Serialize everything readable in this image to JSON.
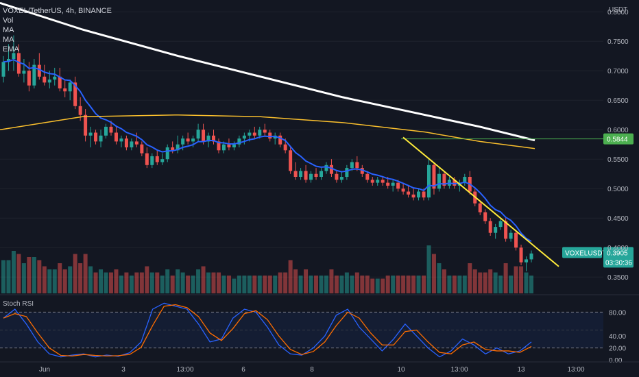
{
  "header": {
    "symbol_line": "VOXEL/TetherUS, 4h, BINANCE",
    "indicators": [
      "Vol",
      "MA",
      "MA",
      "EMA"
    ]
  },
  "price_axis": {
    "unit": "USDT",
    "ticks": [
      "0.8000",
      "0.7500",
      "0.7000",
      "0.6500",
      "0.6000",
      "0.5500",
      "0.5000",
      "0.4500",
      "0.4000",
      "0.3500"
    ]
  },
  "time_axis": {
    "labels": [
      "Jun",
      "3",
      "13:00",
      "6",
      "8",
      "10",
      "13:00",
      "13",
      "13:00"
    ]
  },
  "price_tags": {
    "level": {
      "value": "0.5844",
      "color": "#4caf50"
    },
    "symbol": "VOXELUSDT",
    "last": "0.3905",
    "countdown": "03:30:36",
    "last_color": "#26a69a"
  },
  "stoch_rsi": {
    "label": "Stoch RSI",
    "ticks": [
      "80.00",
      "40.00",
      "20.00",
      "0.00"
    ]
  },
  "colors": {
    "background": "#131722",
    "up": "#26a69a",
    "down": "#ef5350",
    "ema": "#2962ff",
    "ma_long": "#ffffff",
    "ma_mid": "#fbc02d",
    "trendline": "#ffeb3b",
    "stoch_k": "#2962ff",
    "stoch_d": "#ff6d00"
  },
  "chart_data": {
    "type": "candlestick",
    "price_range": [
      0.32,
      0.82
    ],
    "candles": [
      [
        0.69,
        0.725,
        0.68,
        0.715
      ],
      [
        0.715,
        0.745,
        0.7,
        0.72
      ],
      [
        0.72,
        0.76,
        0.7,
        0.73
      ],
      [
        0.73,
        0.745,
        0.69,
        0.695
      ],
      [
        0.695,
        0.72,
        0.68,
        0.7
      ],
      [
        0.7,
        0.715,
        0.665,
        0.675
      ],
      [
        0.675,
        0.72,
        0.67,
        0.71
      ],
      [
        0.71,
        0.73,
        0.685,
        0.69
      ],
      [
        0.69,
        0.71,
        0.675,
        0.68
      ],
      [
        0.68,
        0.7,
        0.67,
        0.685
      ],
      [
        0.685,
        0.705,
        0.675,
        0.69
      ],
      [
        0.69,
        0.705,
        0.665,
        0.67
      ],
      [
        0.67,
        0.685,
        0.655,
        0.665
      ],
      [
        0.665,
        0.685,
        0.65,
        0.68
      ],
      [
        0.68,
        0.69,
        0.635,
        0.64
      ],
      [
        0.64,
        0.655,
        0.615,
        0.625
      ],
      [
        0.625,
        0.635,
        0.58,
        0.59
      ],
      [
        0.59,
        0.605,
        0.57,
        0.595
      ],
      [
        0.595,
        0.6,
        0.575,
        0.58
      ],
      [
        0.58,
        0.6,
        0.57,
        0.59
      ],
      [
        0.59,
        0.61,
        0.585,
        0.605
      ],
      [
        0.605,
        0.615,
        0.59,
        0.595
      ],
      [
        0.595,
        0.605,
        0.575,
        0.58
      ],
      [
        0.58,
        0.59,
        0.57,
        0.585
      ],
      [
        0.585,
        0.59,
        0.565,
        0.57
      ],
      [
        0.57,
        0.585,
        0.565,
        0.58
      ],
      [
        0.58,
        0.595,
        0.57,
        0.575
      ],
      [
        0.575,
        0.58,
        0.555,
        0.56
      ],
      [
        0.56,
        0.57,
        0.535,
        0.54
      ],
      [
        0.54,
        0.56,
        0.535,
        0.555
      ],
      [
        0.555,
        0.565,
        0.54,
        0.545
      ],
      [
        0.545,
        0.56,
        0.54,
        0.55
      ],
      [
        0.55,
        0.575,
        0.545,
        0.57
      ],
      [
        0.57,
        0.58,
        0.56,
        0.565
      ],
      [
        0.565,
        0.59,
        0.56,
        0.575
      ],
      [
        0.575,
        0.59,
        0.565,
        0.585
      ],
      [
        0.585,
        0.595,
        0.575,
        0.58
      ],
      [
        0.58,
        0.59,
        0.57,
        0.585
      ],
      [
        0.585,
        0.61,
        0.58,
        0.6
      ],
      [
        0.6,
        0.61,
        0.575,
        0.58
      ],
      [
        0.58,
        0.595,
        0.57,
        0.59
      ],
      [
        0.59,
        0.6,
        0.575,
        0.58
      ],
      [
        0.58,
        0.585,
        0.56,
        0.565
      ],
      [
        0.565,
        0.58,
        0.56,
        0.575
      ],
      [
        0.575,
        0.585,
        0.565,
        0.57
      ],
      [
        0.57,
        0.58,
        0.565,
        0.575
      ],
      [
        0.575,
        0.59,
        0.57,
        0.585
      ],
      [
        0.585,
        0.595,
        0.575,
        0.59
      ],
      [
        0.59,
        0.6,
        0.58,
        0.595
      ],
      [
        0.595,
        0.605,
        0.585,
        0.59
      ],
      [
        0.59,
        0.605,
        0.585,
        0.6
      ],
      [
        0.6,
        0.61,
        0.59,
        0.595
      ],
      [
        0.595,
        0.6,
        0.58,
        0.585
      ],
      [
        0.585,
        0.595,
        0.575,
        0.59
      ],
      [
        0.59,
        0.595,
        0.57,
        0.575
      ],
      [
        0.575,
        0.585,
        0.56,
        0.565
      ],
      [
        0.565,
        0.57,
        0.525,
        0.53
      ],
      [
        0.53,
        0.545,
        0.515,
        0.52
      ],
      [
        0.52,
        0.535,
        0.515,
        0.53
      ],
      [
        0.53,
        0.54,
        0.51,
        0.515
      ],
      [
        0.515,
        0.53,
        0.51,
        0.525
      ],
      [
        0.525,
        0.535,
        0.515,
        0.52
      ],
      [
        0.52,
        0.535,
        0.515,
        0.53
      ],
      [
        0.53,
        0.545,
        0.525,
        0.54
      ],
      [
        0.54,
        0.55,
        0.52,
        0.525
      ],
      [
        0.525,
        0.53,
        0.51,
        0.515
      ],
      [
        0.515,
        0.53,
        0.51,
        0.52
      ],
      [
        0.52,
        0.54,
        0.515,
        0.535
      ],
      [
        0.535,
        0.55,
        0.53,
        0.545
      ],
      [
        0.545,
        0.555,
        0.53,
        0.535
      ],
      [
        0.535,
        0.54,
        0.52,
        0.525
      ],
      [
        0.525,
        0.53,
        0.51,
        0.515
      ],
      [
        0.515,
        0.52,
        0.505,
        0.51
      ],
      [
        0.51,
        0.52,
        0.505,
        0.515
      ],
      [
        0.515,
        0.52,
        0.505,
        0.51
      ],
      [
        0.51,
        0.52,
        0.5,
        0.505
      ],
      [
        0.505,
        0.515,
        0.495,
        0.51
      ],
      [
        0.51,
        0.515,
        0.495,
        0.5
      ],
      [
        0.5,
        0.51,
        0.49,
        0.495
      ],
      [
        0.495,
        0.505,
        0.485,
        0.49
      ],
      [
        0.49,
        0.5,
        0.48,
        0.485
      ],
      [
        0.485,
        0.5,
        0.48,
        0.495
      ],
      [
        0.495,
        0.5,
        0.48,
        0.485
      ],
      [
        0.485,
        0.55,
        0.48,
        0.54
      ],
      [
        0.54,
        0.545,
        0.49,
        0.5
      ],
      [
        0.5,
        0.535,
        0.495,
        0.525
      ],
      [
        0.525,
        0.53,
        0.5,
        0.505
      ],
      [
        0.505,
        0.52,
        0.5,
        0.515
      ],
      [
        0.515,
        0.52,
        0.5,
        0.505
      ],
      [
        0.505,
        0.515,
        0.495,
        0.51
      ],
      [
        0.51,
        0.525,
        0.505,
        0.52
      ],
      [
        0.52,
        0.53,
        0.49,
        0.495
      ],
      [
        0.495,
        0.5,
        0.47,
        0.475
      ],
      [
        0.475,
        0.48,
        0.455,
        0.46
      ],
      [
        0.46,
        0.465,
        0.44,
        0.445
      ],
      [
        0.445,
        0.45,
        0.42,
        0.425
      ],
      [
        0.425,
        0.44,
        0.415,
        0.435
      ],
      [
        0.435,
        0.45,
        0.43,
        0.445
      ],
      [
        0.445,
        0.45,
        0.41,
        0.415
      ],
      [
        0.415,
        0.43,
        0.41,
        0.425
      ],
      [
        0.425,
        0.43,
        0.395,
        0.4
      ],
      [
        0.4,
        0.405,
        0.37,
        0.375
      ],
      [
        0.375,
        0.385,
        0.36,
        0.38
      ],
      [
        0.38,
        0.395,
        0.375,
        0.39
      ]
    ]
  }
}
